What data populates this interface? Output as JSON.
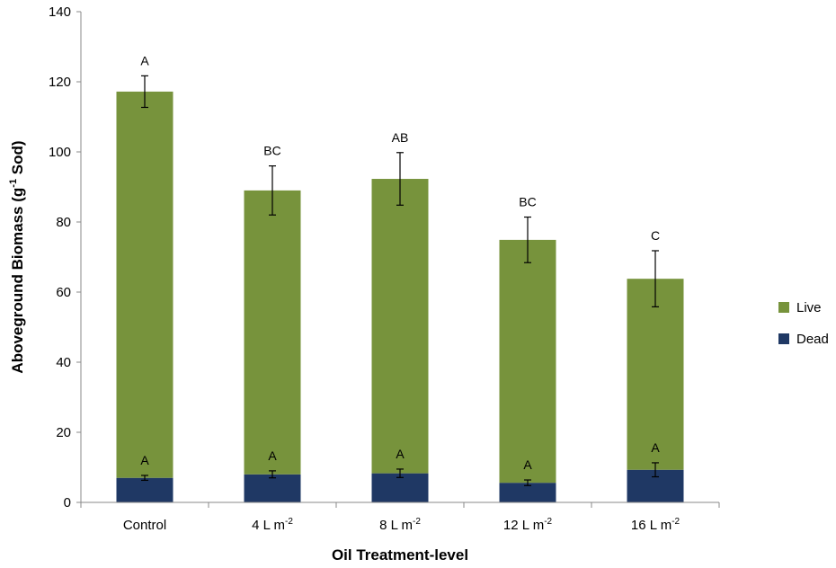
{
  "chart_data": {
    "type": "bar",
    "stacked": true,
    "title": "",
    "xlabel": "Oil Treatment-level",
    "ylabel_main": "Aboveground Biomass (g",
    "ylabel_sup": "-1",
    "ylabel_end": " Sod)",
    "ylim": [
      0,
      140
    ],
    "yticks": [
      0,
      20,
      40,
      60,
      80,
      100,
      120,
      140
    ],
    "categories": [
      {
        "base": "Control",
        "sup": ""
      },
      {
        "base": "4 L m",
        "sup": "-2"
      },
      {
        "base": "8 L m",
        "sup": "-2"
      },
      {
        "base": "12 L m",
        "sup": "-2"
      },
      {
        "base": "16 L m",
        "sup": "-2"
      }
    ],
    "series": [
      {
        "name": "Dead",
        "color": "#1f3864",
        "values": [
          7,
          8,
          8.3,
          5.6,
          9.3
        ],
        "errors": [
          0.7,
          1.0,
          1.2,
          0.8,
          2.0
        ],
        "letters": [
          "A",
          "A",
          "A",
          "A",
          "A"
        ]
      },
      {
        "name": "Live",
        "color": "#77933c",
        "values": [
          110.2,
          81,
          84,
          69.3,
          54.5
        ],
        "errors": [
          4.5,
          7.0,
          7.5,
          6.5,
          8.0
        ],
        "letters": [
          "A",
          "BC",
          "AB",
          "BC",
          "C"
        ]
      }
    ],
    "legend": {
      "position": "right",
      "order": [
        "Live",
        "Dead"
      ]
    },
    "grid": false
  }
}
